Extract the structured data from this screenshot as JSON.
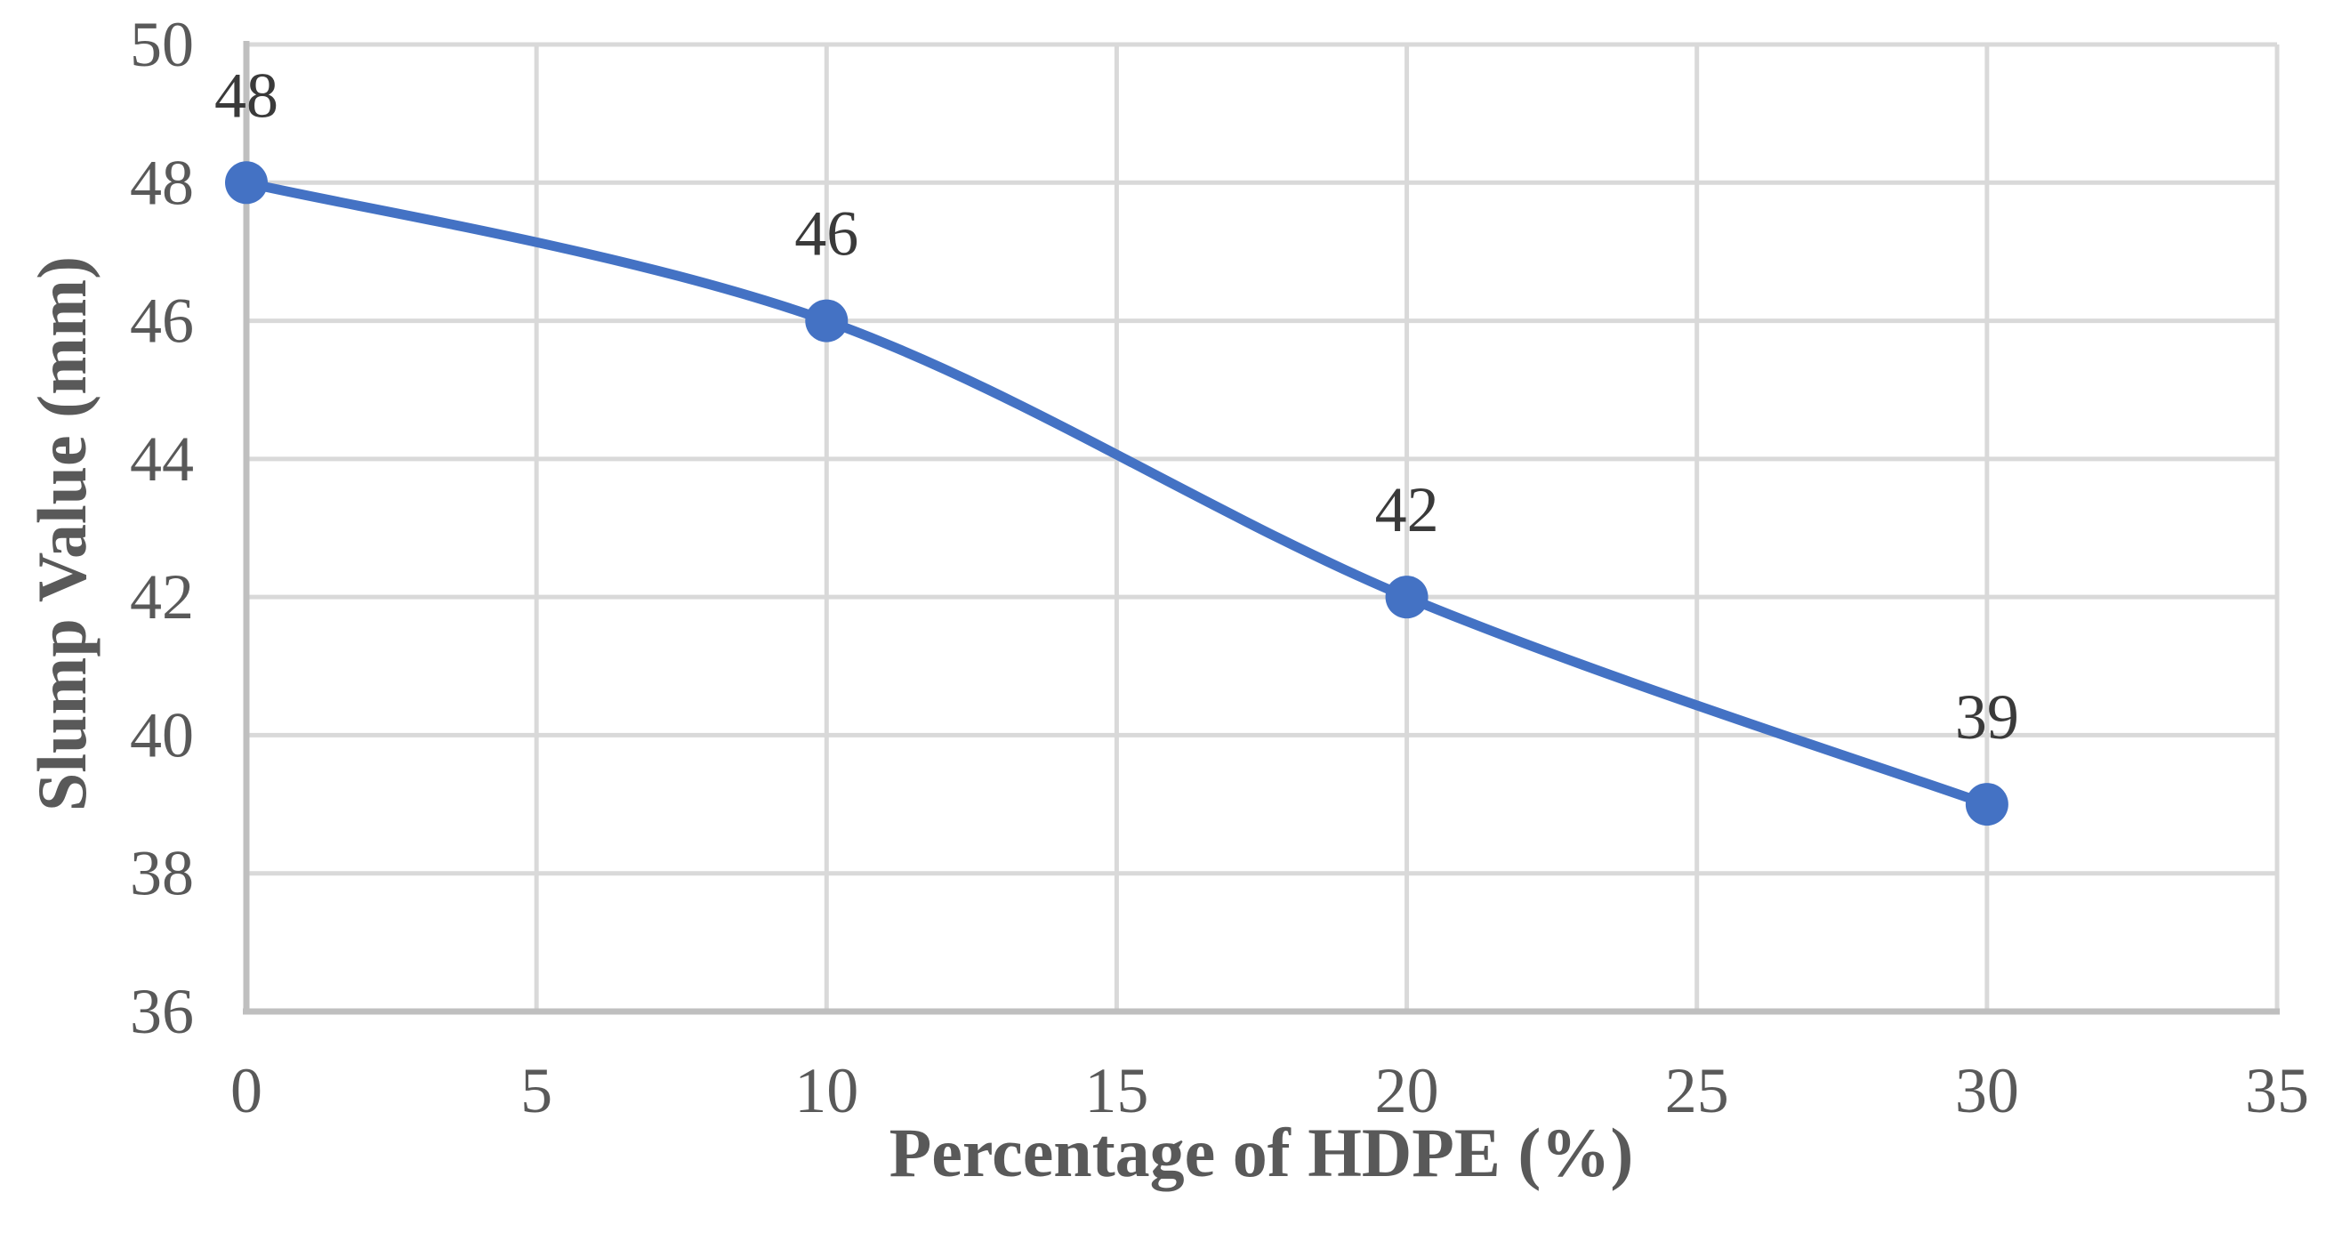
{
  "chart_data": {
    "type": "line",
    "x": [
      0,
      10,
      20,
      30
    ],
    "y": [
      48,
      46,
      42,
      39
    ],
    "data_labels": [
      "48",
      "46",
      "42",
      "39"
    ],
    "title": "",
    "xlabel": "Percentage of HDPE (%)",
    "ylabel": "Slump Value (mm)",
    "xlim": [
      0,
      35
    ],
    "ylim": [
      36,
      50
    ],
    "x_ticks": [
      0,
      5,
      10,
      15,
      20,
      25,
      30,
      35
    ],
    "y_ticks": [
      36,
      38,
      40,
      42,
      44,
      46,
      48,
      50
    ],
    "grid": true,
    "smooth": true,
    "legend_position": "none",
    "marker_shape": "circle",
    "colors": {
      "line": "#4472C4",
      "gridline": "#D9D9D9",
      "axis_line": "#BFBFBF",
      "tick_label": "#595959",
      "data_label": "#3A3A3A",
      "axis_title": "#595959",
      "background": "#FFFFFF"
    }
  }
}
